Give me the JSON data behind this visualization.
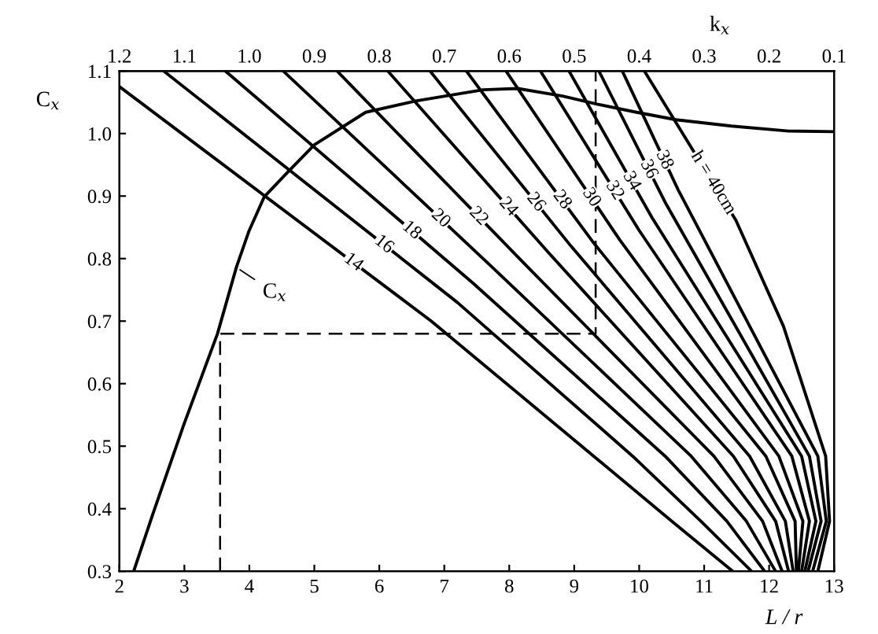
{
  "chart_data": {
    "type": "line",
    "xlabel": "L / r",
    "ylabel": "C$_{x}$",
    "x2label": "k$_{x}$",
    "xlim": [
      2,
      13
    ],
    "ylim": [
      0.3,
      1.1
    ],
    "x2lim": [
      1.2,
      0.1
    ],
    "xticks": [
      2,
      3,
      4,
      5,
      6,
      7,
      8,
      9,
      10,
      11,
      12,
      13
    ],
    "yticks": [
      0.3,
      0.4,
      0.5,
      0.6,
      0.7,
      0.8,
      0.9,
      {
        "value": 1,
        "label": "1.0"
      },
      1.1
    ],
    "x2ticks": [
      1.2,
      1.1,
      {
        "value": 1,
        "label": "1.0"
      },
      0.9,
      0.8,
      0.7,
      0.6,
      0.5,
      0.4,
      0.3,
      0.2,
      0.1
    ],
    "grid": false,
    "legend": false,
    "annotations": [
      {
        "text": "C$_{x}$",
        "x": 3.8,
        "y": 0.786
      }
    ],
    "series": [
      {
        "color": "#000000",
        "x": [
          2.22,
          2.51,
          2.99,
          3.51,
          3.8,
          3.99,
          4.23,
          4.57,
          5.0,
          5.79,
          6.56,
          7.6,
          8.13,
          8.82,
          9.35,
          9.96,
          10.57,
          11.42,
          12.3,
          13.0
        ],
        "values": [
          0.3,
          0.39,
          0.534,
          0.68,
          0.786,
          0.843,
          0.899,
          0.936,
          0.982,
          1.034,
          1.052,
          1.07,
          1.072,
          1.06,
          1.047,
          1.034,
          1.022,
          1.012,
          1.004,
          1.003
        ]
      },
      {
        "color": "#000000",
        "line_style": "dashed",
        "x": [
          3.55,
          3.55,
          9.33,
          9.33
        ],
        "values": [
          0.3,
          0.68,
          0.68,
          1.1
        ]
      },
      {
        "name": "14",
        "color": "#000000",
        "x": [
          2,
          6.8,
          9.3,
          10.5,
          11.44
        ],
        "values": [
          1.075,
          0.7,
          0.484,
          0.38,
          0.3
        ]
      },
      {
        "name": "16",
        "color": "#000000",
        "x": [
          2.68,
          7.2,
          9.9,
          10.95,
          11.73
        ],
        "values": [
          1.1,
          0.73,
          0.484,
          0.38,
          0.3
        ]
      },
      {
        "name": "18",
        "color": "#000000",
        "x": [
          3.63,
          7.45,
          10.4,
          11.35,
          11.93
        ],
        "values": [
          1.1,
          0.76,
          0.484,
          0.38,
          0.3
        ]
      },
      {
        "name": "20",
        "color": "#000000",
        "x": [
          4.52,
          7.75,
          10.8,
          11.65,
          12.1
        ],
        "values": [
          1.1,
          0.785,
          0.484,
          0.38,
          0.3
        ]
      },
      {
        "name": "22",
        "color": "#000000",
        "x": [
          5.35,
          8.25,
          11.15,
          11.9,
          12.2
        ],
        "values": [
          1.1,
          0.79,
          0.484,
          0.38,
          0.3
        ]
      },
      {
        "name": "24",
        "color": "#000000",
        "x": [
          6.13,
          8.6,
          11.45,
          12.1,
          12.3
        ],
        "values": [
          1.1,
          0.81,
          0.484,
          0.38,
          0.3
        ]
      },
      {
        "name": "26",
        "color": "#000000",
        "x": [
          6.78,
          8.95,
          11.7,
          12.25,
          12.37
        ],
        "values": [
          1.1,
          0.82,
          0.484,
          0.38,
          0.3
        ]
      },
      {
        "name": "28",
        "color": "#000000",
        "x": [
          7.34,
          9.3,
          11.95,
          12.4,
          12.42
        ],
        "values": [
          1.1,
          0.825,
          0.484,
          0.38,
          0.3
        ]
      },
      {
        "name": "30",
        "color": "#000000",
        "x": [
          7.95,
          9.7,
          12.15,
          12.52,
          12.45
        ],
        "values": [
          1.1,
          0.83,
          0.484,
          0.38,
          0.3
        ]
      },
      {
        "name": "32",
        "color": "#000000",
        "x": [
          8.48,
          10.0,
          12.35,
          12.62,
          12.5
        ],
        "values": [
          1.1,
          0.845,
          0.484,
          0.38,
          0.3
        ]
      },
      {
        "name": "34",
        "color": "#000000",
        "x": [
          8.92,
          10.2,
          12.5,
          12.72,
          12.55
        ],
        "values": [
          1.1,
          0.865,
          0.484,
          0.38,
          0.3
        ]
      },
      {
        "name": "36",
        "color": "#000000",
        "x": [
          9.38,
          10.4,
          12.62,
          12.8,
          12.6
        ],
        "values": [
          1.1,
          0.89,
          0.484,
          0.38,
          0.3
        ]
      },
      {
        "name": "38",
        "color": "#000000",
        "x": [
          9.74,
          10.6,
          12.75,
          12.88,
          12.67
        ],
        "values": [
          1.1,
          0.91,
          0.484,
          0.38,
          0.3
        ]
      },
      {
        "name": "h = 40cm",
        "color": "#000000",
        "x": [
          10.08,
          11.49,
          12.22,
          12.87,
          12.93,
          12.75
        ],
        "values": [
          1.1,
          0.861,
          0.692,
          0.484,
          0.38,
          0.3
        ]
      }
    ]
  }
}
